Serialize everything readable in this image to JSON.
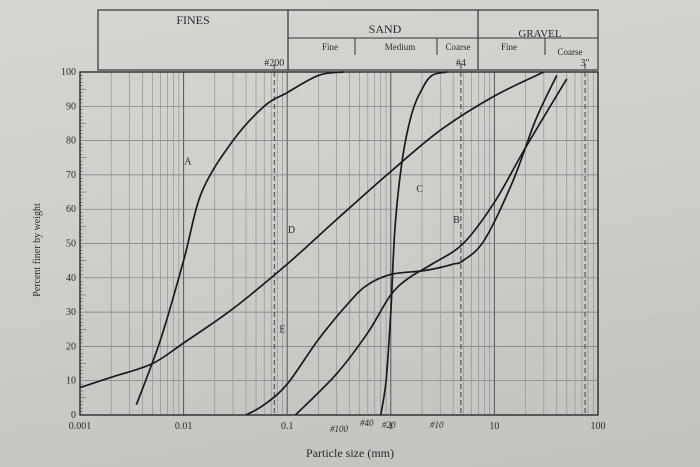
{
  "chart_data": {
    "type": "line",
    "xlabel": "Particle size (mm)",
    "ylabel": "Percent finer by weight",
    "x_scale": "log",
    "xlim": [
      0.001,
      100
    ],
    "ylim": [
      0,
      100
    ],
    "x_ticks": [
      "0.001",
      "0.01",
      "0.1",
      "1",
      "10",
      "100"
    ],
    "y_ticks": [
      "0",
      "10",
      "20",
      "30",
      "40",
      "50",
      "60",
      "70",
      "80",
      "90",
      "100"
    ],
    "grid": true,
    "sieves": [
      {
        "label": "#200",
        "x": 0.075
      },
      {
        "label": "#4",
        "x": 4.75
      },
      {
        "label": "3\"",
        "x": 75
      }
    ],
    "header": {
      "fines": "FINES",
      "sand": "SAND",
      "gravel": "GRAVEL",
      "sand_fine": "Fine",
      "sand_medium": "Medium",
      "sand_coarse": "Coarse",
      "gravel_fine": "Fine",
      "gravel_coarse": "Coarse"
    },
    "handwritten": {
      "no100": "#100",
      "no40": "#40",
      "no20": "#20",
      "no10": "#10"
    },
    "series": [
      {
        "name": "A",
        "label_at": [
          0.011,
          73
        ],
        "x": [
          0.0035,
          0.006,
          0.01,
          0.015,
          0.03,
          0.06,
          0.1,
          0.2,
          0.35
        ],
        "y": [
          3,
          22,
          45,
          65,
          80,
          90,
          94,
          99,
          100
        ]
      },
      {
        "name": "B",
        "label_at": [
          4.3,
          56
        ],
        "x": [
          0.12,
          0.3,
          0.6,
          1.0,
          1.5,
          2.5,
          5.0,
          10.0,
          20.0,
          50.0
        ],
        "y": [
          0,
          12,
          24,
          35,
          40,
          44,
          50,
          62,
          78,
          98
        ]
      },
      {
        "name": "C",
        "label_at": [
          1.9,
          65
        ],
        "x": [
          0.8,
          0.9,
          1.0,
          1.1,
          1.3,
          1.6,
          2.0,
          2.5,
          3.5
        ],
        "y": [
          0,
          10,
          30,
          55,
          75,
          88,
          95,
          99,
          100
        ]
      },
      {
        "name": "D",
        "label_at": [
          0.11,
          53
        ],
        "x": [
          0.001,
          0.002,
          0.005,
          0.01,
          0.03,
          0.1,
          0.3,
          1.0,
          3.0,
          10.0,
          30.0
        ],
        "y": [
          8,
          11,
          15,
          21,
          31,
          44,
          57,
          71,
          83,
          93,
          100
        ]
      },
      {
        "name": "E",
        "label_at": [
          0.09,
          24
        ],
        "x": [
          0.04,
          0.06,
          0.1,
          0.2,
          0.4,
          0.6,
          1.0,
          2.0,
          3.0,
          4.0,
          5.0,
          8.0,
          15.0,
          25.0,
          40.0
        ],
        "y": [
          0,
          3,
          9,
          22,
          33,
          38,
          41,
          42,
          43,
          44,
          45,
          51,
          68,
          86,
          99
        ]
      }
    ]
  }
}
